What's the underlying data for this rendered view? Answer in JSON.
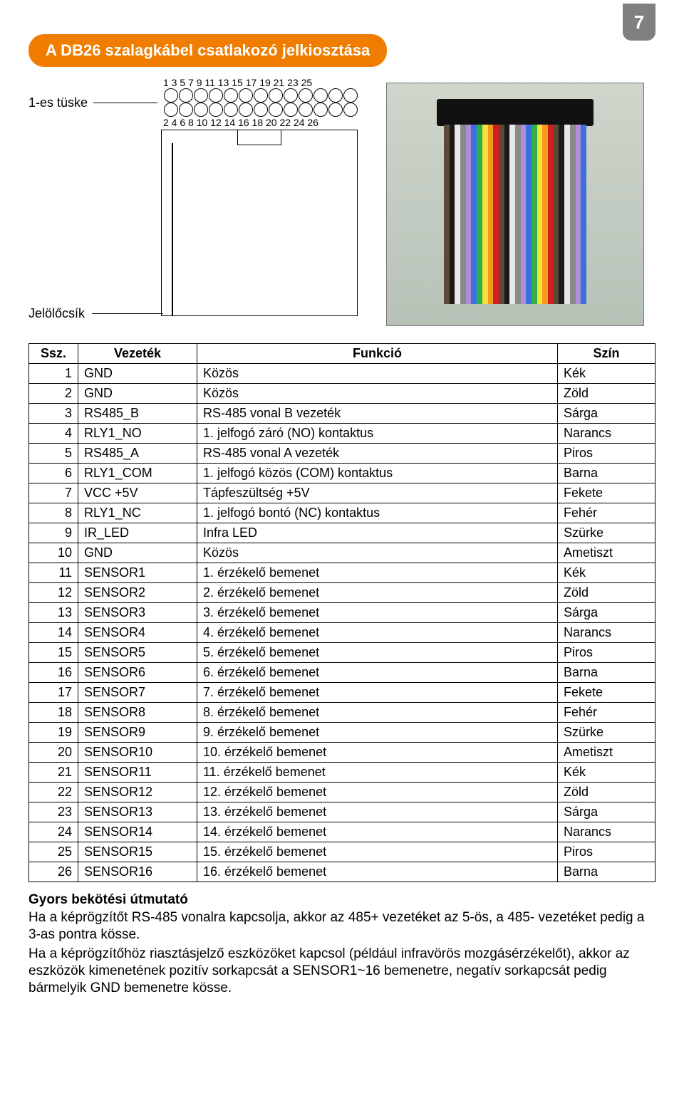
{
  "page_number": "7",
  "title": "A DB26 szalagkábel csatlakozó jelkiosztása",
  "accent_color": "#f07d00",
  "tab_color": "#808080",
  "diagram": {
    "pin1_label": "1-es tüske",
    "marker_label": "Jelölőcsík",
    "top_numbers": "1  3  5  7  9 11 13 15 17 19 21 23 25",
    "bottom_numbers": "2  4  6  8 10 12 14 16 18 20 22 24 26"
  },
  "photo": {
    "ribbon_colors": [
      "#5b4a3a",
      "#1a1a1a",
      "#e8e8e8",
      "#8a8a8a",
      "#b08ed6",
      "#3b6fe0",
      "#2fae4a",
      "#f7e23a",
      "#f39a1f",
      "#d11f1f",
      "#5b4a3a",
      "#1a1a1a",
      "#e8e8e8",
      "#8a8a8a",
      "#b08ed6",
      "#3b6fe0",
      "#2fae4a",
      "#f7e23a",
      "#f39a1f",
      "#d11f1f",
      "#5b4a3a",
      "#1a1a1a",
      "#e8e8e8",
      "#8a8a8a",
      "#b08ed6",
      "#3b6fe0"
    ]
  },
  "table": {
    "columns": [
      "Ssz.",
      "Vezeték",
      "Funkció",
      "Szín"
    ],
    "rows": [
      [
        "1",
        "GND",
        "Közös",
        "Kék"
      ],
      [
        "2",
        "GND",
        "Közös",
        "Zöld"
      ],
      [
        "3",
        "RS485_B",
        "RS-485 vonal B vezeték",
        "Sárga"
      ],
      [
        "4",
        "RLY1_NO",
        "1. jelfogó záró (NO) kontaktus",
        "Narancs"
      ],
      [
        "5",
        "RS485_A",
        "RS-485 vonal A vezeték",
        "Piros"
      ],
      [
        "6",
        "RLY1_COM",
        "1. jelfogó közös (COM) kontaktus",
        "Barna"
      ],
      [
        "7",
        "VCC +5V",
        "Tápfeszültség +5V",
        "Fekete"
      ],
      [
        "8",
        "RLY1_NC",
        "1. jelfogó bontó (NC) kontaktus",
        "Fehér"
      ],
      [
        "9",
        "IR_LED",
        "Infra LED",
        "Szürke"
      ],
      [
        "10",
        "GND",
        "Közös",
        "Ametiszt"
      ],
      [
        "11",
        "SENSOR1",
        "1. érzékelő bemenet",
        "Kék"
      ],
      [
        "12",
        "SENSOR2",
        "2. érzékelő bemenet",
        "Zöld"
      ],
      [
        "13",
        "SENSOR3",
        "3. érzékelő bemenet",
        "Sárga"
      ],
      [
        "14",
        "SENSOR4",
        "4. érzékelő bemenet",
        "Narancs"
      ],
      [
        "15",
        "SENSOR5",
        "5. érzékelő bemenet",
        "Piros"
      ],
      [
        "16",
        "SENSOR6",
        "6. érzékelő bemenet",
        "Barna"
      ],
      [
        "17",
        "SENSOR7",
        "7. érzékelő bemenet",
        "Fekete"
      ],
      [
        "18",
        "SENSOR8",
        "8. érzékelő bemenet",
        "Fehér"
      ],
      [
        "19",
        "SENSOR9",
        "9. érzékelő bemenet",
        "Szürke"
      ],
      [
        "20",
        "SENSOR10",
        "10. érzékelő bemenet",
        "Ametiszt"
      ],
      [
        "21",
        "SENSOR11",
        "11. érzékelő bemenet",
        "Kék"
      ],
      [
        "22",
        "SENSOR12",
        "12. érzékelő bemenet",
        "Zöld"
      ],
      [
        "23",
        "SENSOR13",
        "13. érzékelő bemenet",
        "Sárga"
      ],
      [
        "24",
        "SENSOR14",
        "14. érzékelő bemenet",
        "Narancs"
      ],
      [
        "25",
        "SENSOR15",
        "15. érzékelő bemenet",
        "Piros"
      ],
      [
        "26",
        "SENSOR16",
        "16. érzékelő bemenet",
        "Barna"
      ]
    ]
  },
  "guide": {
    "title": "Gyors bekötési útmutató",
    "p1": "Ha a képrögzítőt RS-485 vonalra kapcsolja, akkor az 485+ vezetéket az 5-ös, a 485- vezetéket pedig a 3-as pontra kösse.",
    "p2": "Ha a képrögzítőhöz riasztásjelző eszközöket kapcsol (például infravörös mozgásérzékelőt), akkor az eszközök kimenetének pozitív sorkapcsát a SENSOR1~16 bemenetre, negatív sorkapcsát pedig bármelyik GND bemenetre kösse."
  }
}
